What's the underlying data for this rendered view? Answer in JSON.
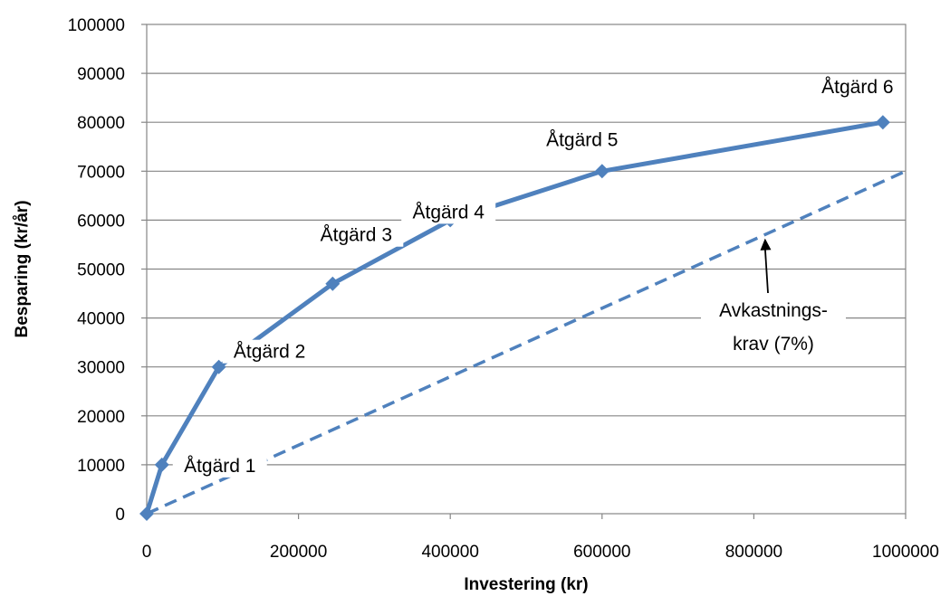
{
  "chart_data": {
    "type": "line",
    "title": "",
    "xlabel": "Investering (kr)",
    "ylabel": "Besparing (kr/år)",
    "xlim": [
      0,
      1000000
    ],
    "ylim": [
      0,
      100000
    ],
    "x_ticks": [
      "0",
      "200000",
      "400000",
      "600000",
      "800000",
      "1000000"
    ],
    "y_ticks": [
      "0",
      "10000",
      "20000",
      "30000",
      "40000",
      "50000",
      "60000",
      "70000",
      "80000",
      "90000",
      "100000"
    ],
    "grid": "horizontal",
    "colors": {
      "series": "#4f81bd",
      "grid": "#868686",
      "axis": "#868686"
    },
    "series": [
      {
        "style": "solid",
        "marker": "diamond",
        "x": [
          0,
          20000,
          95000,
          245000,
          400000,
          600000,
          970000
        ],
        "y": [
          0,
          10000,
          30000,
          47000,
          60000,
          70000,
          80000
        ]
      },
      {
        "style": "dashed",
        "marker": "none",
        "x": [
          0,
          1000000
        ],
        "y": [
          0,
          70000
        ]
      }
    ],
    "annotations": [
      {
        "text": "Åtgärd 1",
        "x": 20000,
        "y": 10000
      },
      {
        "text": "Åtgärd 2",
        "x": 95000,
        "y": 30000
      },
      {
        "text": "Åtgärd 3",
        "x": 245000,
        "y": 47000
      },
      {
        "text": "Åtgärd 4",
        "x": 400000,
        "y": 60000
      },
      {
        "text": "Åtgärd 5",
        "x": 600000,
        "y": 70000
      },
      {
        "text": "Åtgärd 6",
        "x": 970000,
        "y": 80000
      },
      {
        "lines": [
          "Avkastnings-",
          "krav (7%)"
        ],
        "arrow_to": {
          "x": 810000,
          "y": 57000
        }
      }
    ]
  }
}
